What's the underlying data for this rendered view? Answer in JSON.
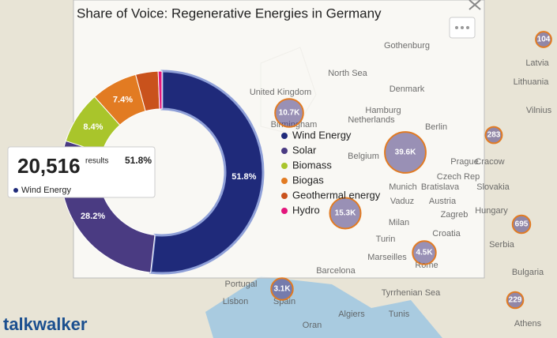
{
  "chart_data": {
    "type": "pie",
    "donut": true,
    "title": "Share of Voice: Regenerative Energies in Germany",
    "categories": [
      "Wind Energy",
      "Solar",
      "Biomass",
      "Biogas",
      "Geothermal energy",
      "Hydro"
    ],
    "values": [
      51.8,
      28.2,
      8.4,
      7.4,
      3.6,
      0.6
    ],
    "value_labels": [
      "51.8%",
      "28.2%",
      "8.4%",
      "7.4%",
      null,
      null
    ],
    "colors": [
      "#1f2a7a",
      "#4a3b82",
      "#a9c52b",
      "#e27b22",
      "#c9521c",
      "#e3167c"
    ],
    "legend": "right"
  },
  "tooltip": {
    "count": {
      "value": 20516,
      "label": "20,516"
    },
    "unit": "results"
  },
  "map": {
    "bubbles": [
      {
        "value": 10700,
        "label": "10.7K"
      },
      {
        "value": 39600,
        "label": "39.6K"
      },
      {
        "value": 15300,
        "label": "15.3K"
      },
      {
        "value": 4500,
        "label": "4.5K"
      },
      {
        "value": 3100,
        "label": "3.1K"
      },
      283,
      695,
      229,
      104
    ],
    "places": [
      "North Sea",
      "Gothenburg",
      "Denmark",
      "United Kingdom",
      "Birmingham",
      "Netherlands",
      "Hamburg",
      "Berlin",
      "Belgium",
      "Prague",
      "Czech Rep",
      "Cracow",
      "Munich",
      "Bratislava",
      "Slovakia",
      "Vaduz",
      "Austria",
      "Hungary",
      "Zagreb",
      "Milan",
      "Croatia",
      "Turin",
      "Serbia",
      "Marseilles",
      "Rome",
      "Barcelona",
      "Portugal",
      "Lisbon",
      "Spain",
      "Tyrrhenian Sea",
      "Algiers",
      "Tunis",
      "Oran",
      "Bulgaria",
      "Athens",
      "Latvia",
      "Lithuania",
      "Vilnius"
    ]
  },
  "brand": "talkwalker"
}
